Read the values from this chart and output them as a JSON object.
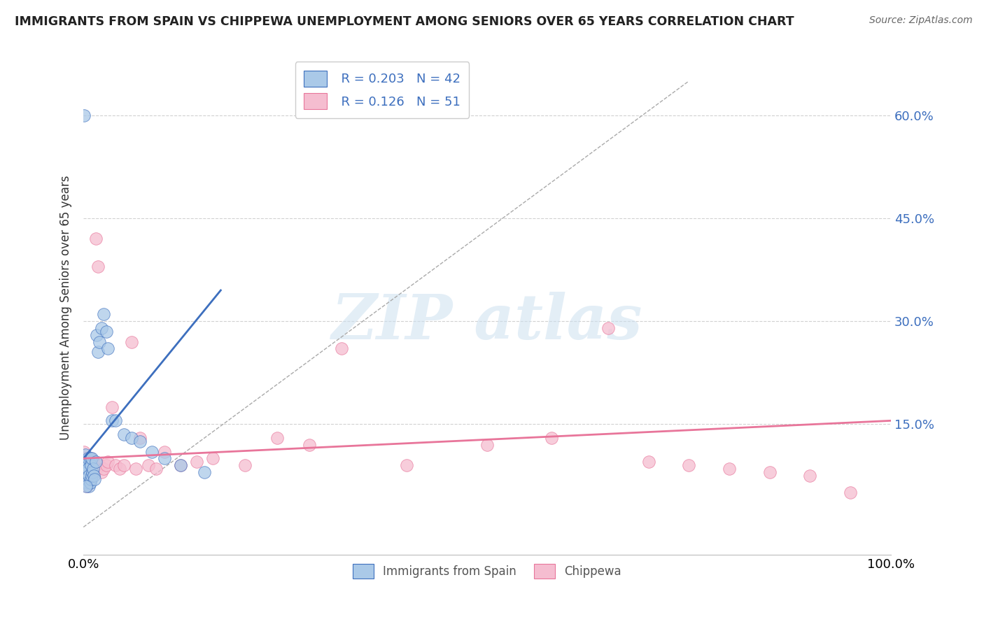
{
  "title": "IMMIGRANTS FROM SPAIN VS CHIPPEWA UNEMPLOYMENT AMONG SENIORS OVER 65 YEARS CORRELATION CHART",
  "source": "Source: ZipAtlas.com",
  "ylabel": "Unemployment Among Seniors over 65 years",
  "y_ticks": [
    "60.0%",
    "45.0%",
    "30.0%",
    "15.0%"
  ],
  "y_tick_vals": [
    0.6,
    0.45,
    0.3,
    0.15
  ],
  "legend_r1": "R = 0.203",
  "legend_n1": "N = 42",
  "legend_r2": "R = 0.126",
  "legend_n2": "N = 51",
  "color_blue": "#aac9e8",
  "color_pink": "#f5bdd0",
  "line_blue": "#3d6fbe",
  "line_pink": "#e8759a",
  "xlim": [
    0.0,
    1.0
  ],
  "ylim": [
    -0.04,
    0.68
  ],
  "blue_scatter_x": [
    0.001,
    0.002,
    0.002,
    0.003,
    0.003,
    0.004,
    0.004,
    0.005,
    0.005,
    0.005,
    0.006,
    0.006,
    0.007,
    0.007,
    0.008,
    0.008,
    0.009,
    0.009,
    0.01,
    0.01,
    0.011,
    0.012,
    0.013,
    0.014,
    0.015,
    0.016,
    0.018,
    0.02,
    0.022,
    0.025,
    0.028,
    0.03,
    0.035,
    0.04,
    0.05,
    0.06,
    0.07,
    0.085,
    0.1,
    0.12,
    0.15,
    0.003
  ],
  "blue_scatter_y": [
    0.6,
    0.105,
    0.085,
    0.095,
    0.075,
    0.09,
    0.07,
    0.095,
    0.08,
    0.065,
    0.1,
    0.085,
    0.075,
    0.06,
    0.1,
    0.065,
    0.09,
    0.07,
    0.1,
    0.075,
    0.08,
    0.085,
    0.075,
    0.07,
    0.095,
    0.28,
    0.255,
    0.27,
    0.29,
    0.31,
    0.285,
    0.26,
    0.155,
    0.155,
    0.135,
    0.13,
    0.125,
    0.11,
    0.1,
    0.09,
    0.08,
    0.06
  ],
  "pink_scatter_x": [
    0.001,
    0.002,
    0.003,
    0.003,
    0.004,
    0.005,
    0.005,
    0.006,
    0.007,
    0.008,
    0.009,
    0.01,
    0.011,
    0.012,
    0.013,
    0.015,
    0.016,
    0.018,
    0.02,
    0.022,
    0.025,
    0.028,
    0.03,
    0.035,
    0.04,
    0.045,
    0.05,
    0.06,
    0.065,
    0.07,
    0.08,
    0.09,
    0.1,
    0.12,
    0.14,
    0.16,
    0.2,
    0.24,
    0.28,
    0.32,
    0.4,
    0.5,
    0.58,
    0.65,
    0.7,
    0.75,
    0.8,
    0.85,
    0.9,
    0.95,
    0.004
  ],
  "pink_scatter_y": [
    0.11,
    0.095,
    0.1,
    0.08,
    0.09,
    0.085,
    0.075,
    0.095,
    0.085,
    0.08,
    0.1,
    0.075,
    0.09,
    0.08,
    0.095,
    0.42,
    0.085,
    0.38,
    0.09,
    0.08,
    0.085,
    0.09,
    0.095,
    0.175,
    0.09,
    0.085,
    0.09,
    0.27,
    0.085,
    0.13,
    0.09,
    0.085,
    0.11,
    0.09,
    0.095,
    0.1,
    0.09,
    0.13,
    0.12,
    0.26,
    0.09,
    0.12,
    0.13,
    0.29,
    0.095,
    0.09,
    0.085,
    0.08,
    0.075,
    0.05,
    0.06
  ],
  "blue_line_x": [
    0.0,
    0.17
  ],
  "blue_line_y": [
    0.1,
    0.345
  ],
  "pink_line_x": [
    0.0,
    1.0
  ],
  "pink_line_y": [
    0.1,
    0.155
  ],
  "diag_line_x": [
    0.0,
    0.75
  ],
  "diag_line_y": [
    0.0,
    0.65
  ]
}
